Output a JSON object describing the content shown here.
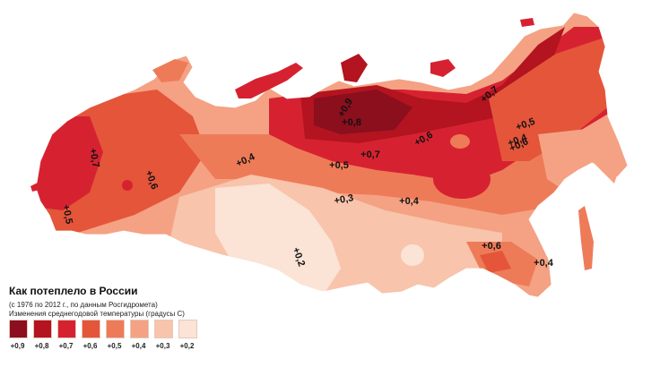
{
  "legend": {
    "title": "Как потеплело в России",
    "subtitle1": "(с 1976 по 2012 г., по данным Росгидромета)",
    "subtitle2": "Изменения среднегодовой температуры (градусы С)",
    "items": [
      {
        "label": "+0,9",
        "color": "#8b0f1d"
      },
      {
        "label": "+0,8",
        "color": "#b3141f"
      },
      {
        "label": "+0,7",
        "color": "#d62230"
      },
      {
        "label": "+0,6",
        "color": "#e4553a"
      },
      {
        "label": "+0,5",
        "color": "#ee7b58"
      },
      {
        "label": "+0,4",
        "color": "#f4a283"
      },
      {
        "label": "+0,3",
        "color": "#f8c4ab"
      },
      {
        "label": "+0,2",
        "color": "#fbe3d6"
      }
    ]
  },
  "map": {
    "labels": [
      {
        "text": "+0,9"
      },
      {
        "text": "+0,8"
      },
      {
        "text": "+0,7"
      },
      {
        "text": "+0,6"
      },
      {
        "text": "+0,5"
      },
      {
        "text": "+0,4"
      },
      {
        "text": "+0,7"
      },
      {
        "text": "+0,6"
      },
      {
        "text": "+0,5"
      },
      {
        "text": "+0,4"
      },
      {
        "text": "+0,7"
      },
      {
        "text": "+0,6"
      },
      {
        "text": "+0,5"
      },
      {
        "text": "+0,3"
      },
      {
        "text": "+0,4"
      },
      {
        "text": "+0,2"
      },
      {
        "text": "+0,6"
      },
      {
        "text": "+0,4"
      }
    ]
  }
}
